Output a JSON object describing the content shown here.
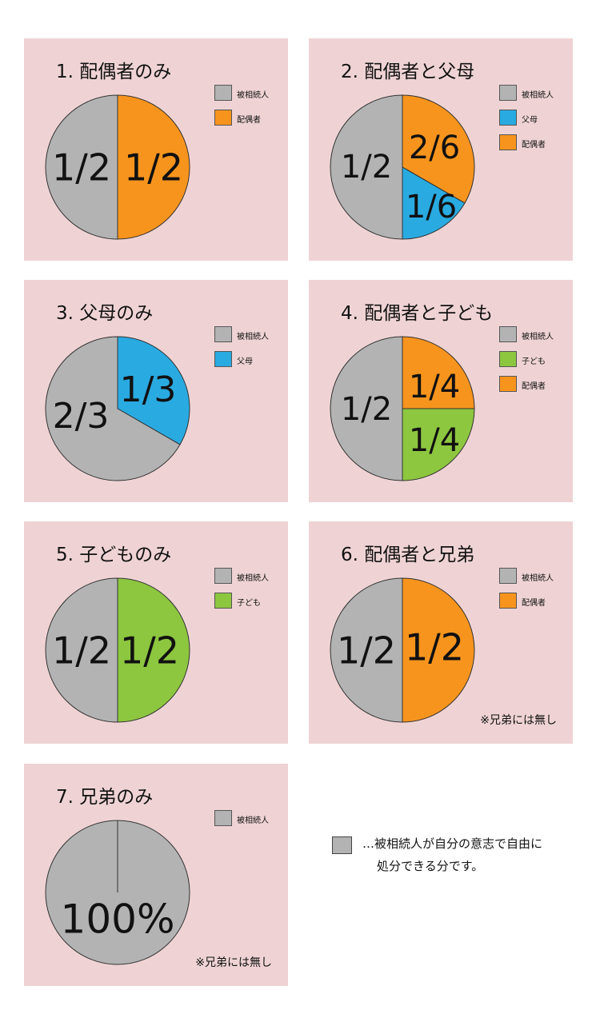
{
  "colors": {
    "panel_bg": "#efd3d4",
    "decedent": "#b3b3b3",
    "spouse": "#f7941d",
    "parents": "#29aae1",
    "children": "#8dc63f"
  },
  "chart_data": [
    {
      "type": "pie",
      "title": "1. 配偶者のみ",
      "legend": [
        {
          "label": "被相続人",
          "color": "#b3b3b3"
        },
        {
          "label": "配偶者",
          "color": "#f7941d"
        }
      ],
      "slices": [
        {
          "label": "1/2",
          "value": 0.5,
          "color": "#f7941d"
        },
        {
          "label": "1/2",
          "value": 0.5,
          "color": "#b3b3b3"
        }
      ],
      "note": ""
    },
    {
      "type": "pie",
      "title": "2. 配偶者と父母",
      "legend": [
        {
          "label": "被相続人",
          "color": "#b3b3b3"
        },
        {
          "label": "父母",
          "color": "#29aae1"
        },
        {
          "label": "配偶者",
          "color": "#f7941d"
        }
      ],
      "slices": [
        {
          "label": "2/6",
          "value": 0.3333,
          "color": "#f7941d"
        },
        {
          "label": "1/6",
          "value": 0.1667,
          "color": "#29aae1"
        },
        {
          "label": "1/2",
          "value": 0.5,
          "color": "#b3b3b3"
        }
      ],
      "note": ""
    },
    {
      "type": "pie",
      "title": "3. 父母のみ",
      "legend": [
        {
          "label": "被相続人",
          "color": "#b3b3b3"
        },
        {
          "label": "父母",
          "color": "#29aae1"
        }
      ],
      "slices": [
        {
          "label": "1/3",
          "value": 0.3333,
          "color": "#29aae1"
        },
        {
          "label": "2/3",
          "value": 0.6667,
          "color": "#b3b3b3"
        }
      ],
      "note": ""
    },
    {
      "type": "pie",
      "title": "4. 配偶者と子ども",
      "legend": [
        {
          "label": "被相続人",
          "color": "#b3b3b3"
        },
        {
          "label": "子ども",
          "color": "#8dc63f"
        },
        {
          "label": "配偶者",
          "color": "#f7941d"
        }
      ],
      "slices": [
        {
          "label": "1/4",
          "value": 0.25,
          "color": "#f7941d"
        },
        {
          "label": "1/4",
          "value": 0.25,
          "color": "#8dc63f"
        },
        {
          "label": "1/2",
          "value": 0.5,
          "color": "#b3b3b3"
        }
      ],
      "note": ""
    },
    {
      "type": "pie",
      "title": "5. 子どものみ",
      "legend": [
        {
          "label": "被相続人",
          "color": "#b3b3b3"
        },
        {
          "label": "子ども",
          "color": "#8dc63f"
        }
      ],
      "slices": [
        {
          "label": "1/2",
          "value": 0.5,
          "color": "#8dc63f"
        },
        {
          "label": "1/2",
          "value": 0.5,
          "color": "#b3b3b3"
        }
      ],
      "note": ""
    },
    {
      "type": "pie",
      "title": "6. 配偶者と兄弟",
      "legend": [
        {
          "label": "被相続人",
          "color": "#b3b3b3"
        },
        {
          "label": "配偶者",
          "color": "#f7941d"
        }
      ],
      "slices": [
        {
          "label": "1/2",
          "value": 0.5,
          "color": "#f7941d"
        },
        {
          "label": "1/2",
          "value": 0.5,
          "color": "#b3b3b3"
        }
      ],
      "note": "※兄弟には無し"
    },
    {
      "type": "pie",
      "title": "7. 兄弟のみ",
      "legend": [
        {
          "label": "被相続人",
          "color": "#b3b3b3"
        }
      ],
      "slices": [
        {
          "label": "100%",
          "value": 1.0,
          "color": "#b3b3b3"
        }
      ],
      "note": "※兄弟には無し"
    }
  ],
  "explanation": {
    "line1": "…被相続人が自分の意志で自由に",
    "line2": "処分できる分です。"
  }
}
